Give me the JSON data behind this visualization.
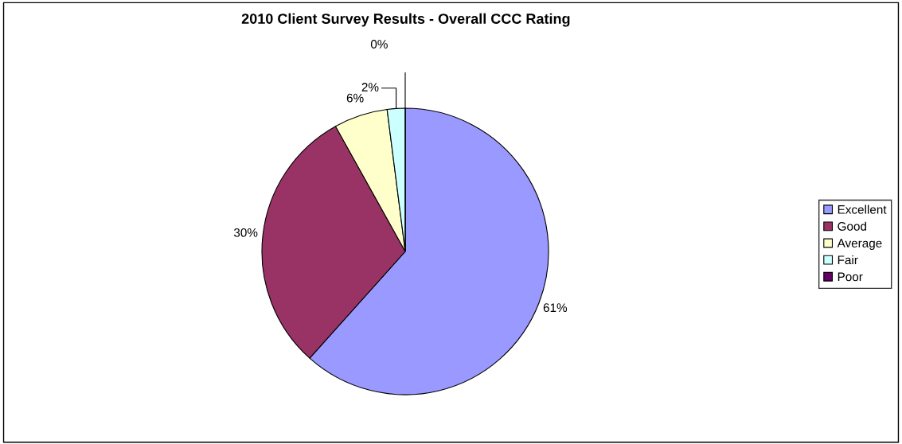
{
  "chart_data": {
    "type": "pie",
    "title": "2010 Client Survey Results - Overall CCC Rating",
    "categories": [
      "Excellent",
      "Good",
      "Average",
      "Fair",
      "Poor"
    ],
    "values": [
      61,
      30,
      6,
      2,
      0
    ],
    "colors": [
      "#9999ff",
      "#993366",
      "#ffffcc",
      "#ccffff",
      "#660066"
    ],
    "value_labels": [
      "61%",
      "30%",
      "6%",
      "2%",
      "0%"
    ],
    "legend": "right"
  }
}
